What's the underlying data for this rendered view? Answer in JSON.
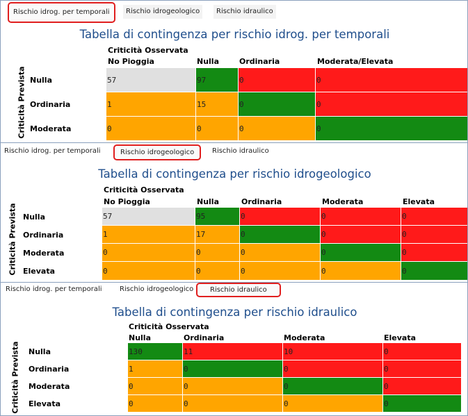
{
  "tables": [
    {
      "tabs": [
        "Rischio idrog. per temporali",
        "Rischio idrogeologico",
        "Rischio idraulico"
      ],
      "active_tab": 0,
      "title": "Tabella di contingenza per rischio idrog. per temporali",
      "observed_label": "Criticità Osservata",
      "predicted_label": "Criticità Prevista",
      "columns": [
        "No Pioggia",
        "Nulla",
        "Ordinaria",
        "Moderata/Elevata"
      ],
      "rows": [
        {
          "label": "Nulla",
          "values": [
            "57",
            "97",
            "0",
            "0"
          ],
          "colors": [
            "g",
            "gr",
            "r",
            "r"
          ]
        },
        {
          "label": "Ordinaria",
          "values": [
            "1",
            "15",
            "0",
            "0"
          ],
          "colors": [
            "o",
            "o",
            "gr",
            "r"
          ]
        },
        {
          "label": "Moderata",
          "values": [
            "0",
            "0",
            "0",
            "0"
          ],
          "colors": [
            "o",
            "o",
            "o",
            "gr"
          ]
        }
      ]
    },
    {
      "tabs": [
        "Rischio idrog. per temporali",
        "Rischio idrogeologico",
        "Rischio idraulico"
      ],
      "active_tab": 1,
      "title": "Tabella di contingenza per rischio idrogeologico",
      "observed_label": "Criticità Osservata",
      "predicted_label": "Criticità Prevista",
      "columns": [
        "No Pioggia",
        "Nulla",
        "Ordinaria",
        "Moderata",
        "Elevata"
      ],
      "rows": [
        {
          "label": "Nulla",
          "values": [
            "57",
            "95",
            "0",
            "0",
            "0"
          ],
          "colors": [
            "g",
            "gr",
            "r",
            "r",
            "r"
          ]
        },
        {
          "label": "Ordinaria",
          "values": [
            "1",
            "17",
            "0",
            "0",
            "0"
          ],
          "colors": [
            "o",
            "o",
            "gr",
            "r",
            "r"
          ]
        },
        {
          "label": "Moderata",
          "values": [
            "0",
            "0",
            "0",
            "0",
            "0"
          ],
          "colors": [
            "o",
            "o",
            "o",
            "gr",
            "r"
          ]
        },
        {
          "label": "Elevata",
          "values": [
            "0",
            "0",
            "0",
            "0",
            "0"
          ],
          "colors": [
            "o",
            "o",
            "o",
            "o",
            "gr"
          ]
        }
      ]
    },
    {
      "tabs": [
        "Rischio idrog. per temporali",
        "Rischio idrogeologico",
        "Rischio idraulico"
      ],
      "active_tab": 2,
      "title": "Tabella di contingenza per rischio idraulico",
      "observed_label": "Criticità Osservata",
      "predicted_label": "Criticità Prevista",
      "columns": [
        "Nulla",
        "Ordinaria",
        "Moderata",
        "Elevata"
      ],
      "rows": [
        {
          "label": "Nulla",
          "values": [
            "130",
            "11",
            "10",
            "0"
          ],
          "colors": [
            "gr",
            "r",
            "r",
            "r"
          ]
        },
        {
          "label": "Ordinaria",
          "values": [
            "1",
            "0",
            "0",
            "0"
          ],
          "colors": [
            "o",
            "gr",
            "r",
            "r"
          ]
        },
        {
          "label": "Moderata",
          "values": [
            "0",
            "0",
            "0",
            "0"
          ],
          "colors": [
            "o",
            "o",
            "gr",
            "r"
          ]
        },
        {
          "label": "Elevata",
          "values": [
            "0",
            "0",
            "0",
            "0"
          ],
          "colors": [
            "o",
            "o",
            "o",
            "gr"
          ]
        }
      ]
    }
  ],
  "colors": {
    "gray": "#e0e0e0",
    "green": "#138a13",
    "red": "#ff1a1a",
    "orange": "#ffa500",
    "title": "#1f4e8c",
    "active_tab_border": "#e01e1e"
  }
}
